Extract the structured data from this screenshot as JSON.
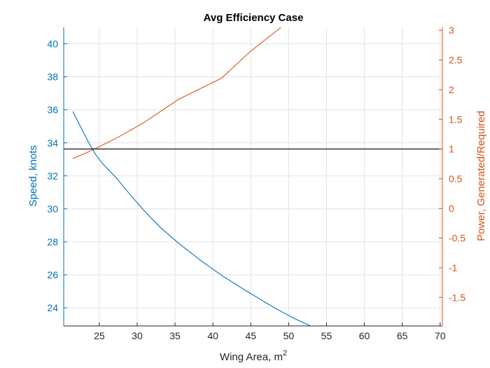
{
  "chart_data": {
    "type": "line",
    "title": "Avg Efficiency Case",
    "xlabel": "Wing Area, m",
    "xlabel_superscript": "2",
    "ylabel_left": "Speed, knots",
    "ylabel_right": "Power, Generated/Required",
    "xlim": [
      20.3,
      70.3
    ],
    "ylim_left": [
      22.9,
      41
    ],
    "ylim_right": [
      -1.98,
      3.05
    ],
    "x_ticks": [
      25,
      30,
      35,
      40,
      45,
      50,
      55,
      60,
      65,
      70
    ],
    "x_tick_labels": [
      "25",
      "30",
      "35",
      "40",
      "45",
      "50",
      "55",
      "60",
      "65",
      "70"
    ],
    "y_left_ticks": [
      24,
      26,
      28,
      30,
      32,
      34,
      36,
      38,
      40
    ],
    "y_left_tick_labels": [
      "24",
      "26",
      "28",
      "30",
      "32",
      "34",
      "36",
      "38",
      "40"
    ],
    "y_right_ticks": [
      -1.5,
      -1,
      -0.5,
      0,
      0.5,
      1,
      1.5,
      2,
      2.5,
      3
    ],
    "y_right_tick_labels": [
      "-1.5",
      "-1",
      "-0.5",
      "0",
      "0.5",
      "1",
      "1.5",
      "2",
      "2.5",
      "3"
    ],
    "grid": true,
    "series": [
      {
        "axis": "left",
        "color": "#0072bd",
        "x": [
          21.5,
          22.5,
          23.5,
          24.5,
          25.5,
          27.2,
          29,
          30.8,
          33,
          35.5,
          38.3,
          41.2,
          44.5,
          48.3,
          51,
          52.9
        ],
        "y": [
          35.9,
          35,
          34.1,
          33.3,
          32.7,
          31.9,
          30.9,
          29.95,
          28.9,
          27.9,
          26.9,
          25.95,
          25,
          23.95,
          23.3,
          22.9
        ]
      },
      {
        "axis": "right",
        "color": "#d95319",
        "x": [
          21.5,
          23,
          25,
          27.5,
          30.8,
          35.5,
          41.1,
          45,
          49
        ],
        "y": [
          0.84,
          0.92,
          1.04,
          1.2,
          1.44,
          1.84,
          2.19,
          2.65,
          3.05
        ]
      },
      {
        "axis": "right",
        "color": "#000000",
        "x": [
          20.3,
          70.3
        ],
        "y": [
          1,
          1
        ]
      }
    ]
  }
}
